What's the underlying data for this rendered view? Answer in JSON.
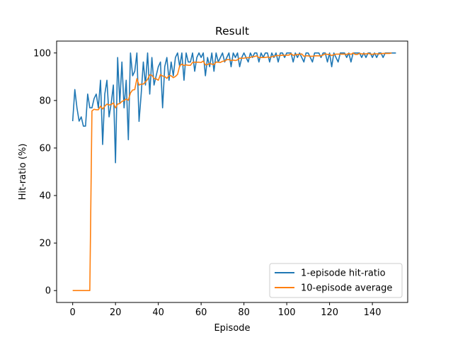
{
  "chart_data": {
    "type": "line",
    "title": "Result",
    "xlabel": "Episode",
    "ylabel": "Hit-ratio (%)",
    "xlim": [
      -7.5,
      156.5
    ],
    "ylim": [
      -5,
      105
    ],
    "xticks": [
      0,
      20,
      40,
      60,
      80,
      100,
      120,
      140
    ],
    "yticks": [
      0,
      20,
      40,
      60,
      80,
      100
    ],
    "grid": false,
    "legend_position": "lower-right",
    "series": [
      {
        "name": "1-episode hit-ratio",
        "color": "#1f77b4",
        "values": [
          71.3,
          84.6,
          76.9,
          71.3,
          73.1,
          69.2,
          69.2,
          82.7,
          76.9,
          76.9,
          80.8,
          82.7,
          76.9,
          88.5,
          61.5,
          82.7,
          88.5,
          73.1,
          78.8,
          86.5,
          53.8,
          98.1,
          78.8,
          96.2,
          76.9,
          88.5,
          63.5,
          100,
          90.4,
          92.3,
          100,
          71.2,
          82.7,
          96.2,
          86.5,
          100,
          82.7,
          98.1,
          86.5,
          90.4,
          94.2,
          96.2,
          76.9,
          94.2,
          98.1,
          88.5,
          96.2,
          90.4,
          98.1,
          100,
          94.2,
          100,
          88.5,
          100,
          96.2,
          96.2,
          100,
          92.3,
          98.1,
          100,
          98.1,
          100,
          90.4,
          98.1,
          94.2,
          100,
          92.3,
          100,
          96.2,
          98.1,
          100,
          96.2,
          98.1,
          100,
          94.2,
          100,
          98.1,
          100,
          94.2,
          98.1,
          100,
          98.1,
          96.2,
          100,
          98.1,
          100,
          100,
          96.2,
          100,
          98.1,
          100,
          100,
          96.2,
          100,
          98.1,
          100,
          96.2,
          100,
          100,
          98.1,
          100,
          100,
          100,
          96.2,
          100,
          98.1,
          100,
          98.1,
          96.2,
          100,
          100,
          98.1,
          96.2,
          100,
          100,
          100,
          98.1,
          100,
          100,
          96.2,
          100,
          94.2,
          100,
          98.1,
          96.2,
          100,
          100,
          100,
          98.1,
          100,
          96.2,
          100,
          100,
          100,
          100,
          98.1,
          100,
          98.1,
          100,
          100,
          98.1,
          100,
          98.1,
          100,
          100,
          98.1,
          100,
          100,
          100,
          100,
          100,
          100
        ]
      },
      {
        "name": "10-episode average",
        "color": "#ff7f0e",
        "values": [
          0,
          0,
          0,
          0,
          0,
          0,
          0,
          0,
          0,
          75.6,
          76.3,
          76.1,
          76.1,
          77.6,
          76.4,
          77.6,
          78.5,
          78.1,
          78.3,
          79.0,
          76.9,
          78.5,
          78.7,
          79.6,
          80.0,
          80.6,
          80.1,
          83.2,
          84.4,
          84.6,
          89.2,
          86.5,
          86.9,
          86.9,
          87.8,
          88.9,
          90.8,
          90.6,
          89.3,
          89.1,
          88.5,
          90.9,
          90.3,
          90.1,
          89.3,
          90.5,
          90.4,
          89.6,
          90.1,
          91.0,
          94.6,
          95.3,
          94.7,
          95.0,
          94.8,
          94.8,
          96.0,
          96.1,
          96.1,
          96.1,
          96.0,
          96.6,
          95.0,
          95.1,
          95.6,
          95.3,
          95.1,
          96.2,
          96.1,
          96.0,
          96.5,
          96.6,
          97.2,
          97.2,
          96.8,
          97.0,
          96.8,
          97.1,
          97.8,
          97.8,
          97.8,
          98.0,
          98.0,
          98.1,
          98.5,
          98.5,
          98.8,
          98.0,
          98.1,
          98.1,
          98.1,
          98.3,
          98.1,
          98.4,
          98.6,
          98.9,
          98.9,
          98.9,
          99.1,
          99.0,
          99.1,
          99.1,
          99.7,
          99.0,
          99.2,
          99.4,
          99.4,
          99.6,
          98.6,
          98.8,
          98.8,
          98.6,
          98.6,
          98.8,
          98.8,
          98.8,
          98.8,
          99.2,
          99.6,
          99.4,
          99.4,
          98.9,
          99.3,
          99.5,
          99.5,
          99.5,
          99.5,
          99.5,
          99.4,
          99.8,
          99.4,
          100,
          99.4,
          99.4,
          99.8,
          99.6,
          99.6,
          99.6,
          99.8,
          99.6,
          99.4,
          99.7,
          99.6,
          99.6,
          99.7,
          99.8,
          99.8,
          99.8,
          99.8,
          100
        ]
      }
    ]
  }
}
